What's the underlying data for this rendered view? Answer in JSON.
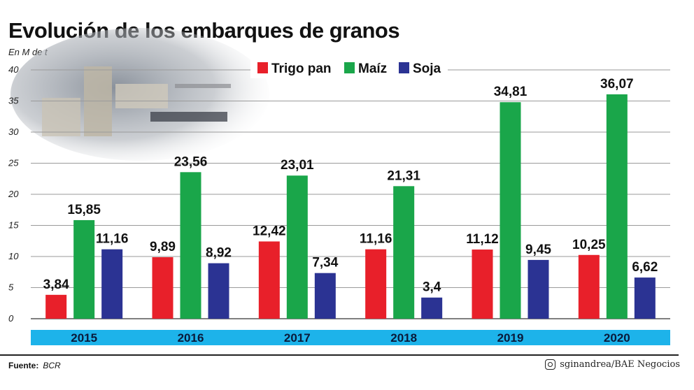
{
  "title": "Evolución de los embarques de granos",
  "unit_label": "En M de t",
  "source": {
    "label": "Fuente:",
    "value": "BCR"
  },
  "credit": {
    "icon": "instagram-icon",
    "text": "sginandrea/BAE Negocios"
  },
  "colors": {
    "trigo": "#e8202a",
    "maiz": "#1aa64a",
    "soja": "#2b3393",
    "axis_band": "#1db3ea",
    "grid": "#9a9a9a"
  },
  "chart_data": {
    "type": "bar",
    "categories": [
      "2015",
      "2016",
      "2017",
      "2018",
      "2019",
      "2020"
    ],
    "series": [
      {
        "name": "Trigo pan",
        "values": [
          3.84,
          9.89,
          12.42,
          11.16,
          11.12,
          10.25
        ],
        "labels": [
          "3,84",
          "9,89",
          "12,42",
          "11,16",
          "11,12",
          "10,25"
        ]
      },
      {
        "name": "Maíz",
        "values": [
          15.85,
          23.56,
          23.01,
          21.31,
          34.81,
          36.07
        ],
        "labels": [
          "15,85",
          "23,56",
          "23,01",
          "21,31",
          "34,81",
          "36,07"
        ]
      },
      {
        "name": "Soja",
        "values": [
          11.16,
          8.92,
          7.34,
          3.4,
          9.45,
          6.62
        ],
        "labels": [
          "11,16",
          "8,92",
          "7,34",
          "3,4",
          "9,45",
          "6,62"
        ]
      }
    ],
    "ylim": [
      0,
      40
    ],
    "yticks": [
      "0",
      "5",
      "10",
      "15",
      "20",
      "25",
      "30",
      "35",
      "40"
    ],
    "grid": true,
    "legend_position": "top-center"
  }
}
